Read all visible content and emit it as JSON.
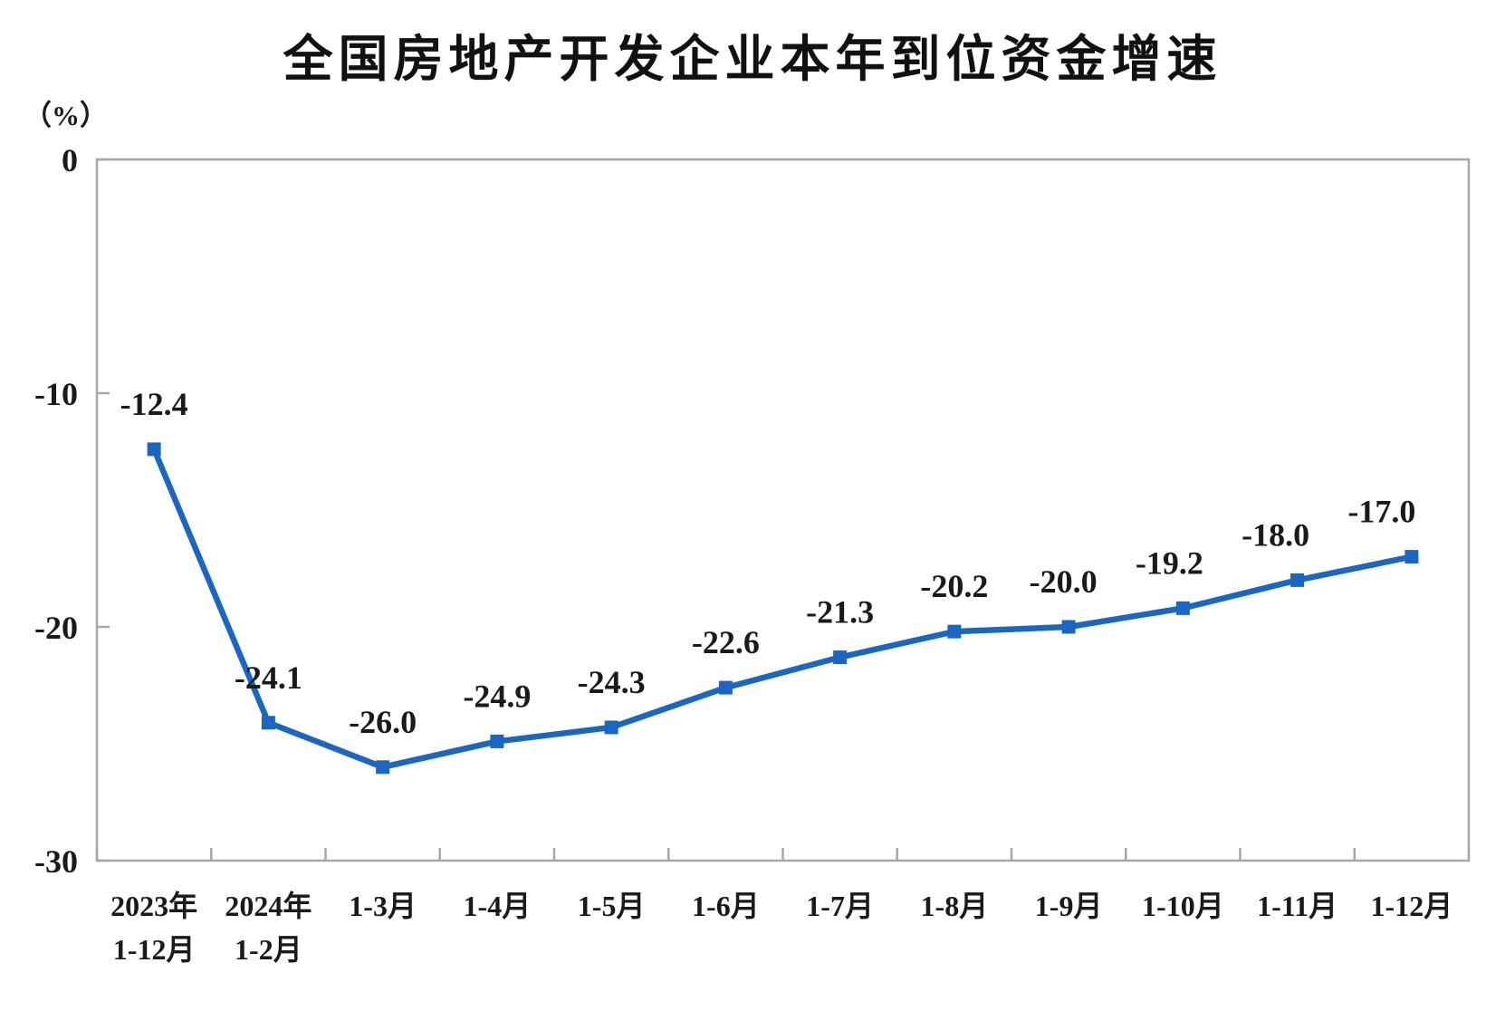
{
  "chart_data": {
    "type": "line",
    "title": "全国房地产开发企业本年到位资金增速",
    "unit_label": "（%）",
    "categories": [
      [
        "2023年",
        "1-12月"
      ],
      [
        "2024年",
        "1-2月"
      ],
      [
        "1-3月"
      ],
      [
        "1-4月"
      ],
      [
        "1-5月"
      ],
      [
        "1-6月"
      ],
      [
        "1-7月"
      ],
      [
        "1-8月"
      ],
      [
        "1-9月"
      ],
      [
        "1-10月"
      ],
      [
        "1-11月"
      ],
      [
        "1-12月"
      ]
    ],
    "values": [
      -12.4,
      -24.1,
      -26.0,
      -24.9,
      -24.3,
      -22.6,
      -21.3,
      -20.2,
      -20.0,
      -19.2,
      -18.0,
      -17.0
    ],
    "data_labels": [
      "-12.4",
      "-24.1",
      "-26.0",
      "-24.9",
      "-24.3",
      "-22.6",
      "-21.3",
      "-20.2",
      "-20.0",
      "-19.2",
      "-18.0",
      "-17.0"
    ],
    "y_ticks": [
      {
        "value": 0,
        "label": "0"
      },
      {
        "value": -10,
        "label": "-10"
      },
      {
        "value": -20,
        "label": "-20"
      },
      {
        "value": -30,
        "label": "-30"
      }
    ],
    "ylim": [
      -30,
      0
    ],
    "grid": false,
    "legend": "none",
    "marker_shape": "square",
    "colors": {
      "series": "#1A67C3",
      "axis": "#A7A7A7",
      "text": "#1A1A1A"
    }
  }
}
